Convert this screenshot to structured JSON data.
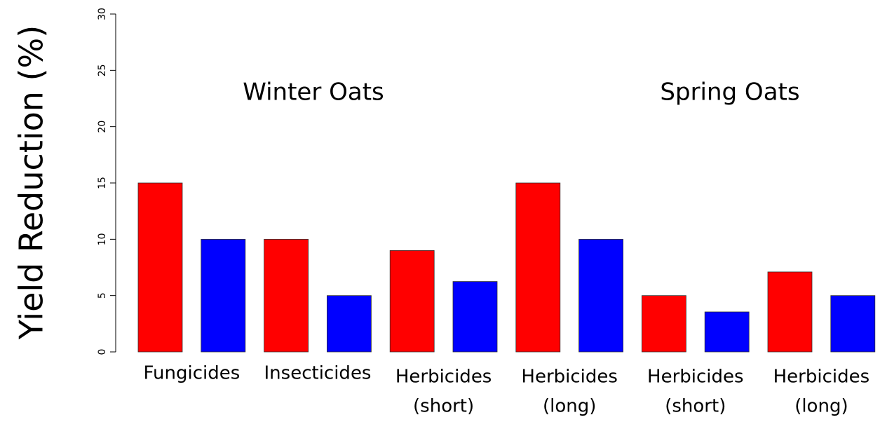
{
  "chart_data": {
    "type": "bar",
    "ylabel": "Yield Reduction (%)",
    "annotations": [
      "Winter Oats",
      "Spring Oats"
    ],
    "categories": [
      [
        "Fungicides"
      ],
      [
        "Insecticides"
      ],
      [
        "Herbicides",
        "(short)"
      ],
      [
        "Herbicides",
        "(long)"
      ],
      [
        "Herbicides",
        "(short)"
      ],
      [
        "Herbicides",
        "(long)"
      ]
    ],
    "series": [
      {
        "color": "#ff0000",
        "values": [
          15,
          10,
          9,
          15,
          5,
          7.1
        ]
      },
      {
        "color": "#0000ff",
        "values": [
          10,
          5,
          6.25,
          10,
          3.55,
          5
        ]
      }
    ],
    "ylim": [
      0,
      30
    ],
    "yticks": [
      0,
      5,
      10,
      15,
      20,
      25,
      30
    ]
  }
}
